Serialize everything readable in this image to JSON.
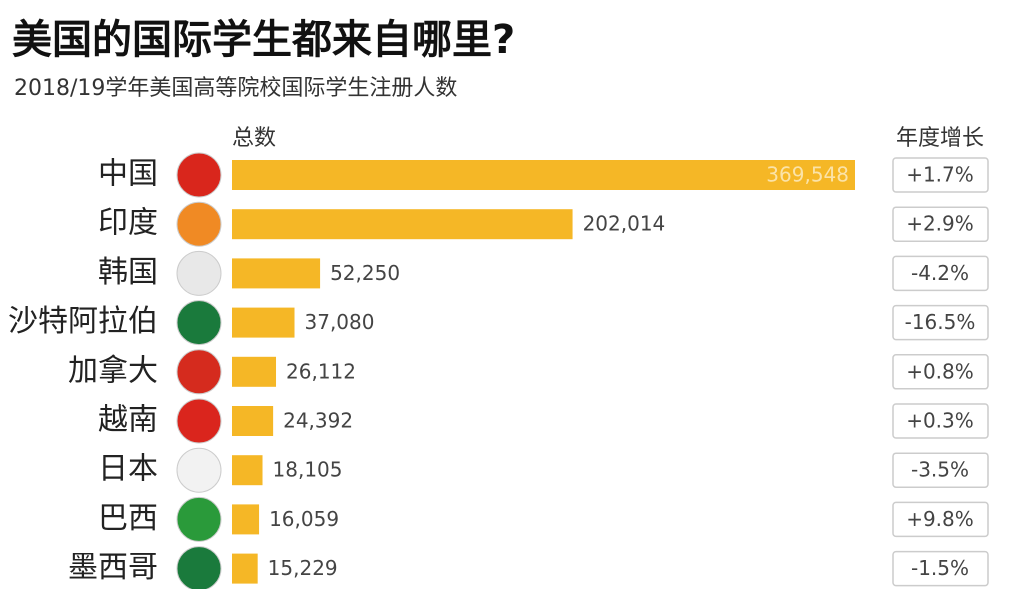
{
  "chart_data": {
    "type": "bar",
    "orientation": "horizontal",
    "title": "美国的国际学生都来自哪里?",
    "subtitle": "2018/19学年美国高等院校国际学生注册人数",
    "categories": [
      "中国",
      "印度",
      "韩国",
      "沙特阿拉伯",
      "加拿大",
      "越南",
      "日本",
      "巴西",
      "墨西哥"
    ],
    "series": [
      {
        "name": "总数",
        "color": "#f5b726",
        "values": [
          369548,
          202014,
          52250,
          37080,
          26112,
          24392,
          18105,
          16059,
          15229
        ],
        "value_labels": [
          "369,548",
          "202,014",
          "52,250",
          "37,080",
          "26,112",
          "24,392",
          "18,105",
          "16,059",
          "15,229"
        ]
      },
      {
        "name": "年度增长",
        "values": [
          1.7,
          2.9,
          -4.2,
          -16.5,
          0.8,
          0.3,
          -3.5,
          9.8,
          -1.5
        ],
        "value_labels": [
          "+1.7%",
          "+2.9%",
          "-4.2%",
          "-16.5%",
          "+0.8%",
          "+0.3%",
          "-3.5%",
          "+9.8%",
          "-1.5%"
        ]
      }
    ]
  }
}
